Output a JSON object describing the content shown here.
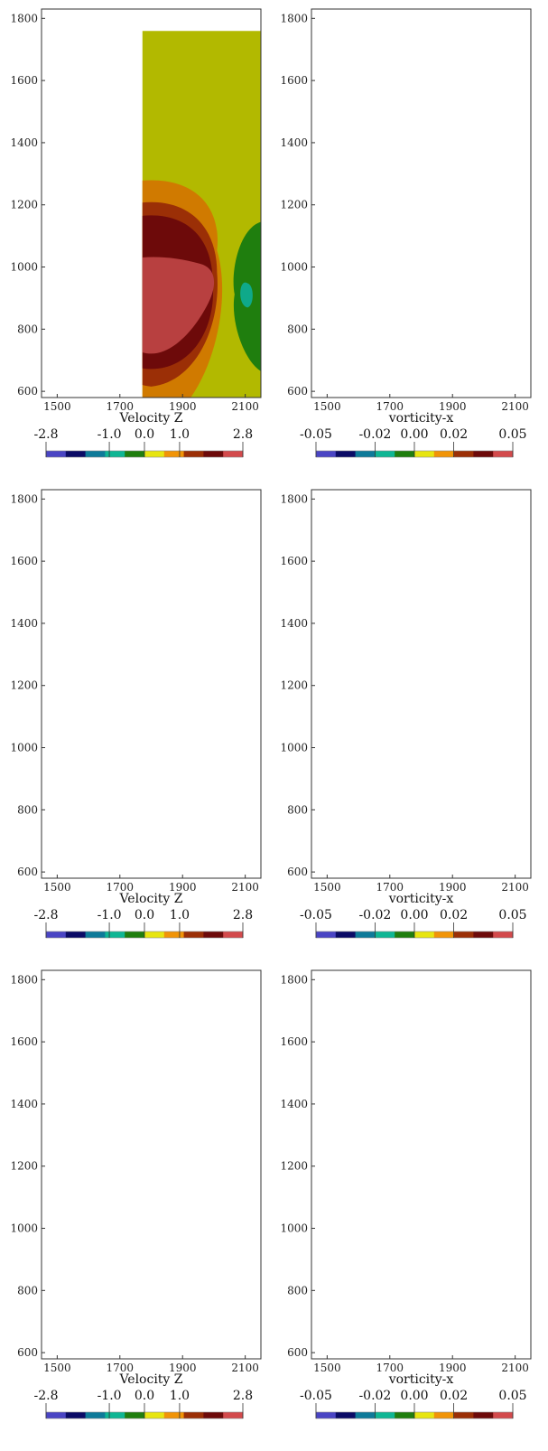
{
  "chart_data": [
    {
      "type": "heatmap",
      "variable": "Velocity Z",
      "xlabel": "Velocity Z",
      "x_ticks": [
        "1500",
        "1700",
        "1900",
        "2100"
      ],
      "y_ticks": [
        "1800",
        "1600",
        "1400",
        "1200",
        "1000",
        "800",
        "600"
      ],
      "xlim": [
        1450,
        2150
      ],
      "ylim": [
        580,
        1830
      ],
      "colorbar": {
        "ticks": [
          "-2.8",
          "-1.0",
          "0.0",
          "1.0",
          "2.8"
        ],
        "range": [
          -2.8,
          2.8
        ],
        "colors": [
          "#4a45c4",
          "#0b0b66",
          "#0e7a99",
          "#0fb694",
          "#1f7e0e",
          "#e7e510",
          "#f19407",
          "#9b2f06",
          "#6d0a0a",
          "#d34a4c"
        ]
      }
    },
    {
      "type": "heatmap",
      "variable": "vorticity-x",
      "xlabel": "vorticity-x",
      "x_ticks": [
        "1500",
        "1700",
        "1900",
        "2100"
      ],
      "y_ticks": [
        "1800",
        "1600",
        "1400",
        "1200",
        "1000",
        "800",
        "600"
      ],
      "xlim": [
        1450,
        2150
      ],
      "ylim": [
        580,
        1830
      ],
      "colorbar": {
        "ticks": [
          "-0.05",
          "-0.02",
          "0.00",
          "0.02",
          "0.05"
        ],
        "range": [
          -0.05,
          0.05
        ],
        "colors": [
          "#4a45c4",
          "#0b0b66",
          "#0e7a99",
          "#0fb694",
          "#1f7e0e",
          "#e7e510",
          "#f19407",
          "#9b2f06",
          "#6d0a0a",
          "#d34a4c"
        ]
      }
    },
    {
      "type": "heatmap",
      "variable": "Velocity Z",
      "xlabel": "Velocity Z",
      "x_ticks": [
        "1500",
        "1700",
        "1900",
        "2100"
      ],
      "y_ticks": [
        "1800",
        "1600",
        "1400",
        "1200",
        "1000",
        "800",
        "600"
      ],
      "xlim": [
        1450,
        2150
      ],
      "ylim": [
        580,
        1830
      ],
      "colorbar": {
        "ticks": [
          "-2.8",
          "-1.0",
          "0.0",
          "1.0",
          "2.8"
        ],
        "range": [
          -2.8,
          2.8
        ],
        "colors": [
          "#4a45c4",
          "#0b0b66",
          "#0e7a99",
          "#0fb694",
          "#1f7e0e",
          "#e7e510",
          "#f19407",
          "#9b2f06",
          "#6d0a0a",
          "#d34a4c"
        ]
      }
    },
    {
      "type": "heatmap",
      "variable": "vorticity-x",
      "xlabel": "vorticity-x",
      "x_ticks": [
        "1500",
        "1700",
        "1900",
        "2100"
      ],
      "y_ticks": [
        "1800",
        "1600",
        "1400",
        "1200",
        "1000",
        "800",
        "600"
      ],
      "xlim": [
        1450,
        2150
      ],
      "ylim": [
        580,
        1830
      ],
      "colorbar": {
        "ticks": [
          "-0.05",
          "-0.02",
          "0.00",
          "0.02",
          "0.05"
        ],
        "range": [
          -0.05,
          0.05
        ],
        "colors": [
          "#4a45c4",
          "#0b0b66",
          "#0e7a99",
          "#0fb694",
          "#1f7e0e",
          "#e7e510",
          "#f19407",
          "#9b2f06",
          "#6d0a0a",
          "#d34a4c"
        ]
      }
    },
    {
      "type": "heatmap",
      "variable": "Velocity Z",
      "xlabel": "Velocity Z",
      "x_ticks": [
        "1500",
        "1700",
        "1900",
        "2100"
      ],
      "y_ticks": [
        "1800",
        "1600",
        "1400",
        "1200",
        "1000",
        "800",
        "600"
      ],
      "xlim": [
        1450,
        2150
      ],
      "ylim": [
        580,
        1830
      ],
      "colorbar": {
        "ticks": [
          "-2.8",
          "-1.0",
          "0.0",
          "1.0",
          "2.8"
        ],
        "range": [
          -2.8,
          2.8
        ],
        "colors": [
          "#4a45c4",
          "#0b0b66",
          "#0e7a99",
          "#0fb694",
          "#1f7e0e",
          "#e7e510",
          "#f19407",
          "#9b2f06",
          "#6d0a0a",
          "#d34a4c"
        ]
      }
    },
    {
      "type": "heatmap",
      "variable": "vorticity-x",
      "xlabel": "vorticity-x",
      "x_ticks": [
        "1500",
        "1700",
        "1900",
        "2100"
      ],
      "y_ticks": [
        "1800",
        "1600",
        "1400",
        "1200",
        "1000",
        "800",
        "600"
      ],
      "xlim": [
        1450,
        2150
      ],
      "ylim": [
        580,
        1830
      ],
      "colorbar": {
        "ticks": [
          "-0.05",
          "-0.02",
          "0.00",
          "0.02",
          "0.05"
        ],
        "range": [
          -0.05,
          0.05
        ],
        "colors": [
          "#4a45c4",
          "#0b0b66",
          "#0e7a99",
          "#0fb694",
          "#1f7e0e",
          "#e7e510",
          "#f19407",
          "#9b2f06",
          "#6d0a0a",
          "#d34a4c"
        ]
      }
    }
  ]
}
